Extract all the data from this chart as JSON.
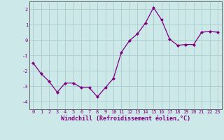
{
  "x": [
    0,
    1,
    2,
    3,
    4,
    5,
    6,
    7,
    8,
    9,
    10,
    11,
    12,
    13,
    14,
    15,
    16,
    17,
    18,
    19,
    20,
    21,
    22,
    23
  ],
  "y": [
    -1.5,
    -2.2,
    -2.7,
    -3.4,
    -2.8,
    -2.8,
    -3.1,
    -3.1,
    -3.7,
    -3.1,
    -2.5,
    -0.8,
    -0.05,
    0.4,
    1.1,
    2.1,
    1.3,
    0.05,
    -0.35,
    -0.3,
    -0.3,
    0.5,
    0.55,
    0.5
  ],
  "line_color": "#800080",
  "marker": "D",
  "marker_size": 2,
  "bg_color": "#cce8e8",
  "grid_color": "#aacccc",
  "xlabel": "Windchill (Refroidissement éolien,°C)",
  "xlim": [
    -0.5,
    23.5
  ],
  "ylim": [
    -4.5,
    2.5
  ],
  "yticks": [
    -4,
    -3,
    -2,
    -1,
    0,
    1,
    2
  ],
  "xticks": [
    0,
    1,
    2,
    3,
    4,
    5,
    6,
    7,
    8,
    9,
    10,
    11,
    12,
    13,
    14,
    15,
    16,
    17,
    18,
    19,
    20,
    21,
    22,
    23
  ],
  "tick_fontsize": 5.0,
  "xlabel_fontsize": 6.0,
  "spine_color": "#666666",
  "linewidth": 0.9
}
